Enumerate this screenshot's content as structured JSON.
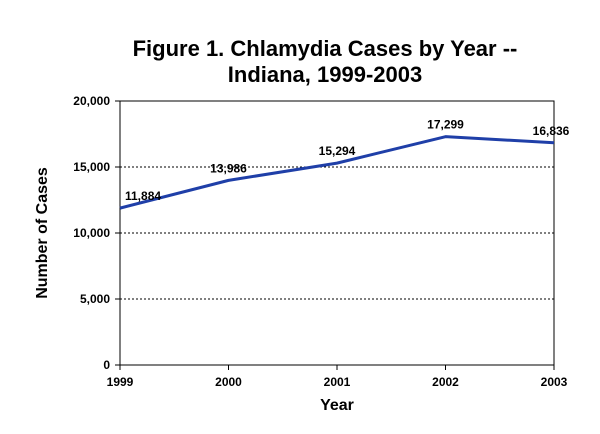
{
  "chart_data": {
    "type": "line",
    "title_line1": "Figure 1.  Chlamydia Cases by Year --",
    "title_line2": "Indiana, 1999-2003",
    "xlabel": "Year",
    "ylabel": "Number of Cases",
    "categories": [
      "1999",
      "2000",
      "2001",
      "2002",
      "2003"
    ],
    "y_ticks": [
      0,
      5000,
      10000,
      15000,
      20000
    ],
    "y_tick_labels": [
      "0",
      "5,000",
      "10,000",
      "15,000",
      "20,000"
    ],
    "ylim": [
      0,
      20000
    ],
    "grid": "horizontal-dotted",
    "series": [
      {
        "name": "Chlamydia Cases",
        "values": [
          11884,
          13986,
          15294,
          17299,
          16836
        ],
        "labels": [
          "11,884",
          "13,986",
          "15,294",
          "17,299",
          "16,836"
        ],
        "color": "#1f3fa8"
      }
    ]
  }
}
